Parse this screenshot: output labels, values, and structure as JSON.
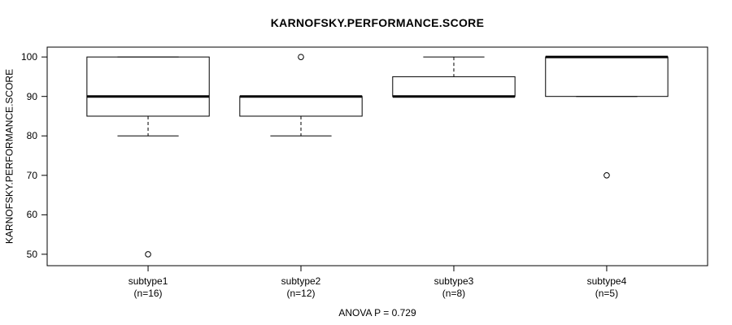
{
  "chart_data": {
    "type": "boxplot",
    "title": "KARNOFSKY.PERFORMANCE.SCORE",
    "ylabel": "KARNOFSKY.PERFORMANCE.SCORE",
    "xlabel": "",
    "annotation": "ANOVA P = 0.729",
    "ylim": [
      47.1,
      102.5
    ],
    "y_ticks": [
      50,
      60,
      70,
      80,
      90,
      100
    ],
    "grid": false,
    "legend": "none",
    "groups": [
      {
        "label": "subtype1",
        "sublabel": "(n=16)",
        "n": 16,
        "q1": 85,
        "median": 90,
        "q3": 100,
        "whisker_low": 80,
        "whisker_high": 100,
        "outliers": [
          50
        ]
      },
      {
        "label": "subtype2",
        "sublabel": "(n=12)",
        "n": 12,
        "q1": 85,
        "median": 90,
        "q3": 90,
        "whisker_low": 80,
        "whisker_high": 90,
        "outliers": [
          100
        ]
      },
      {
        "label": "subtype3",
        "sublabel": "(n=8)",
        "n": 8,
        "q1": 90,
        "median": 90,
        "q3": 95,
        "whisker_low": 90,
        "whisker_high": 100,
        "outliers": []
      },
      {
        "label": "subtype4",
        "sublabel": "(n=5)",
        "n": 5,
        "q1": 90,
        "median": 100,
        "q3": 100,
        "whisker_low": 90,
        "whisker_high": 100,
        "outliers": [
          70
        ]
      }
    ]
  },
  "colors": {
    "line": "#000000",
    "fill": "#ffffff",
    "background": "#ffffff"
  }
}
